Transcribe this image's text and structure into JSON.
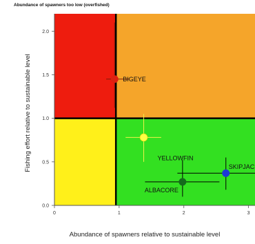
{
  "chart_data": {
    "type": "scatter",
    "top_text": "Abundance of spawners too low (overfished)",
    "xlabel": "Abundance of spawners relative to sustainable level",
    "ylabel": "Fishing effort relative to sustainable level",
    "xlim": [
      0,
      3.1
    ],
    "ylim": [
      0,
      2.2
    ],
    "x_ticks": [
      {
        "value": 0,
        "label": "0"
      },
      {
        "value": 1,
        "label": "1"
      },
      {
        "value": 2,
        "label": "2"
      },
      {
        "value": 3,
        "label": "3"
      }
    ],
    "y_ticks": [
      {
        "value": 0,
        "label": "0.0"
      },
      {
        "value": 0.5,
        "label": "0.5"
      },
      {
        "value": 1.0,
        "label": "1.0"
      },
      {
        "value": 1.5,
        "label": "1.5"
      },
      {
        "value": 2.0,
        "label": "2.0"
      }
    ],
    "reference": {
      "x": 0.95,
      "y": 1.0
    },
    "quadrant_colors": {
      "top_left": "#ee1c0e",
      "top_right": "#f5a52a",
      "bottom_left": "#fff01a",
      "bottom_right": "#33e021"
    },
    "series": [
      {
        "name": "BIGEYE",
        "label_text": "BIGEYE",
        "x": 0.93,
        "y": 1.45,
        "x_err": [
          0.8,
          1.15
        ],
        "y_err": [
          1.12,
          2.1
        ],
        "color": "#dd2211"
      },
      {
        "name": "YELLOWFIN",
        "label_text": "YELLOWFIN",
        "x": 1.38,
        "y": 0.78,
        "x_err": [
          1.1,
          1.65
        ],
        "y_err": [
          0.5,
          1.05
        ],
        "color": "#ffff44"
      },
      {
        "name": "SKIPJACK",
        "label_text": "SKIPJACK",
        "x": 2.65,
        "y": 0.37,
        "x_err": [
          1.9,
          3.1
        ],
        "y_err": [
          0.18,
          0.55
        ],
        "color": "#1d38d6"
      },
      {
        "name": "ALBACORE",
        "label_text": "ALBACORE",
        "x": 1.98,
        "y": 0.27,
        "x_err": [
          1.4,
          2.55
        ],
        "y_err": [
          0.1,
          0.52
        ],
        "color": "#146b1c"
      }
    ]
  }
}
